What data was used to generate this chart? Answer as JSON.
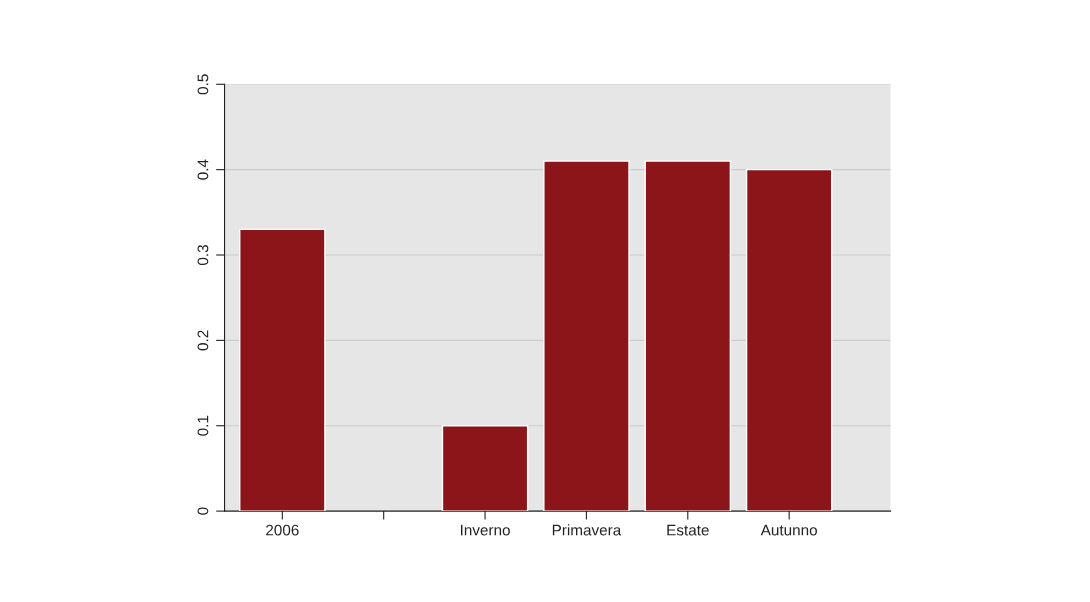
{
  "chart_data": {
    "type": "bar",
    "categories": [
      "2006",
      null,
      "Inverno",
      "Primavera",
      "Estate",
      "Autunno"
    ],
    "values": [
      0.33,
      null,
      0.1,
      0.41,
      0.41,
      0.4
    ],
    "color": "#8b1518",
    "ylim": [
      0,
      0.5
    ],
    "yticks": [
      0,
      0.1,
      0.2,
      0.3,
      0.4,
      0.5
    ],
    "grid": "y"
  }
}
